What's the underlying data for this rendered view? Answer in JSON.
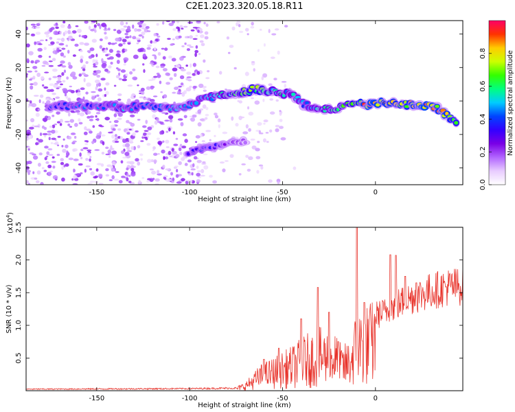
{
  "title": "C2E1.2023.320.05.18.R11",
  "chart_data": [
    {
      "type": "heatmap",
      "xlabel": "Height of straight line (km)",
      "ylabel": "Frequency (Hz)",
      "xlim": [
        -188,
        47
      ],
      "ylim": [
        -50,
        48
      ],
      "x_ticks": [
        -150,
        -100,
        -50,
        0
      ],
      "y_ticks": [
        -40,
        -20,
        0,
        20,
        40
      ],
      "colorbar": {
        "label": "Normalized spectral amplitude",
        "range": [
          0,
          1
        ],
        "ticks": [
          0.0,
          0.2,
          0.4,
          0.6,
          0.8
        ],
        "tick_labels": [
          "0.0",
          "0.2",
          "0.4",
          "0.6",
          "0.8"
        ],
        "colormap": [
          "#ffffff",
          "#e8ccff",
          "#b266ff",
          "#7a00e6",
          "#3300ff",
          "#0044ff",
          "#00ccff",
          "#00ff80",
          "#33ff00",
          "#ccff00",
          "#ffcc00",
          "#ff3300",
          "#ff0066"
        ]
      },
      "ridge": [
        {
          "x": -175,
          "y": -3,
          "a": 0.35
        },
        {
          "x": -160,
          "y": -3,
          "a": 0.4
        },
        {
          "x": -145,
          "y": -3,
          "a": 0.4
        },
        {
          "x": -135,
          "y": -4,
          "a": 0.45
        },
        {
          "x": -120,
          "y": -3,
          "a": 0.4
        },
        {
          "x": -105,
          "y": -4,
          "a": 0.45
        },
        {
          "x": -95,
          "y": 0,
          "a": 0.45
        },
        {
          "x": -85,
          "y": 3,
          "a": 0.5
        },
        {
          "x": -75,
          "y": 5,
          "a": 0.6
        },
        {
          "x": -65,
          "y": 7,
          "a": 0.7
        },
        {
          "x": -55,
          "y": 6,
          "a": 0.55
        },
        {
          "x": -45,
          "y": 4,
          "a": 0.5
        },
        {
          "x": -38,
          "y": -2,
          "a": 0.45
        },
        {
          "x": -30,
          "y": -5,
          "a": 0.5
        },
        {
          "x": -20,
          "y": -4,
          "a": 0.55
        },
        {
          "x": -12,
          "y": -2,
          "a": 0.65
        },
        {
          "x": -5,
          "y": -2,
          "a": 0.85
        },
        {
          "x": 5,
          "y": -1,
          "a": 0.8
        },
        {
          "x": 15,
          "y": -2,
          "a": 0.75
        },
        {
          "x": 25,
          "y": -2,
          "a": 0.85
        },
        {
          "x": 32,
          "y": -4,
          "a": 0.8
        },
        {
          "x": 38,
          "y": -8,
          "a": 0.8
        },
        {
          "x": 44,
          "y": -13,
          "a": 0.7
        }
      ],
      "secondary": [
        {
          "x": -100,
          "y": -31,
          "a": 0.35
        },
        {
          "x": -90,
          "y": -28,
          "a": 0.35
        },
        {
          "x": -82,
          "y": -26,
          "a": 0.3
        },
        {
          "x": -70,
          "y": -24,
          "a": 0.15
        }
      ]
    },
    {
      "type": "line",
      "xlabel": "Height of straight line (km)",
      "ylabel": "SNR (10 * v/v)",
      "y_multiplier": "(x10",
      "y_multiplier_exponent": "4",
      "y_multiplier_close": ")",
      "xlim": [
        -188,
        47
      ],
      "ylim": [
        0,
        25000
      ],
      "x_ticks": [
        -150,
        -100,
        -50,
        0
      ],
      "y_ticks": [
        5000,
        10000,
        15000,
        20000,
        25000
      ],
      "y_tick_labels": [
        "0.5",
        "1.0",
        "1.5",
        "2.0",
        "2.5"
      ],
      "series": [
        {
          "color": "#e8332b",
          "envelope": [
            {
              "x": -188,
              "y": 300
            },
            {
              "x": -100,
              "y": 400
            },
            {
              "x": -75,
              "y": 500
            },
            {
              "x": -70,
              "y": 1200
            },
            {
              "x": -62,
              "y": 3500
            },
            {
              "x": -55,
              "y": 4500
            },
            {
              "x": -45,
              "y": 6000
            },
            {
              "x": -38,
              "y": 7500
            },
            {
              "x": -30,
              "y": 8500
            },
            {
              "x": -22,
              "y": 8000
            },
            {
              "x": -18,
              "y": 6000
            },
            {
              "x": -14,
              "y": 7000
            },
            {
              "x": -10,
              "y": 11000
            },
            {
              "x": -5,
              "y": 11500
            },
            {
              "x": 0,
              "y": 12500
            },
            {
              "x": 5,
              "y": 13000
            },
            {
              "x": 10,
              "y": 14000
            },
            {
              "x": 20,
              "y": 15500
            },
            {
              "x": 30,
              "y": 16500
            },
            {
              "x": 40,
              "y": 17200
            },
            {
              "x": 47,
              "y": 17300
            }
          ],
          "spikes": [
            {
              "x": -60,
              "y": 4800
            },
            {
              "x": -52,
              "y": 6500
            },
            {
              "x": -40,
              "y": 11000
            },
            {
              "x": -31,
              "y": 15800
            },
            {
              "x": -25,
              "y": 12000
            },
            {
              "x": -20,
              "y": 7500
            },
            {
              "x": -10,
              "y": 25500
            },
            {
              "x": -6,
              "y": 13500
            },
            {
              "x": 8,
              "y": 20800
            },
            {
              "x": 11,
              "y": 20700
            },
            {
              "x": 16,
              "y": 17500
            },
            {
              "x": 22,
              "y": 16500
            }
          ]
        }
      ]
    }
  ]
}
